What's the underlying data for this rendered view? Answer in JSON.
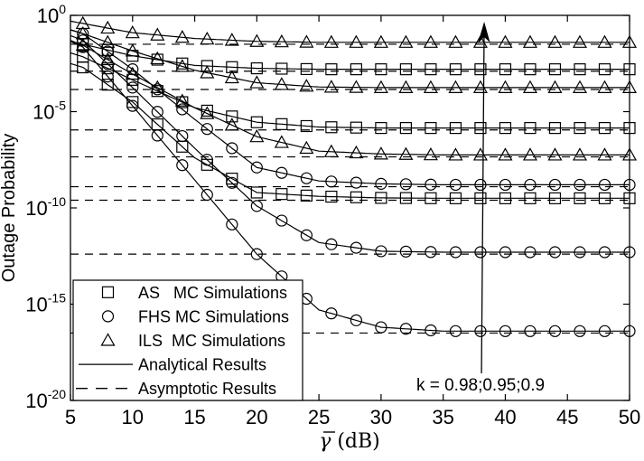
{
  "figure": {
    "background": "#ffffff",
    "ink_color": "#000000"
  },
  "chart_data": {
    "type": "line",
    "title": "",
    "xlabel_symbol": "γ",
    "xlabel_symbol_overline": true,
    "xlabel_unit": "(dB)",
    "ylabel": "Outage Probability",
    "xlim": [
      5,
      50
    ],
    "x_ticks": [
      5,
      10,
      15,
      20,
      25,
      30,
      35,
      40,
      45,
      50
    ],
    "y_axis_scale": "log10",
    "y_tick_base": "10",
    "y_tick_exponents": [
      "0",
      "-5",
      "-10",
      "-15",
      "-20"
    ],
    "ylim_exponents": [
      -20,
      0
    ],
    "grid": false,
    "marker_x_start_db": 6,
    "marker_x_step_db": 2,
    "control_x_db": [
      5,
      6,
      10,
      15,
      20,
      25,
      30,
      35,
      40,
      45,
      50
    ],
    "series": [
      {
        "scheme": "ILS",
        "k": 0.9,
        "marker": "triangle",
        "line": "solid",
        "log10_outage": [
          -0.3,
          -0.42,
          -0.9,
          -1.2,
          -1.35,
          -1.4,
          -1.4,
          -1.4,
          -1.4,
          -1.4,
          -1.4
        ]
      },
      {
        "scheme": "AS",
        "k": 0.9,
        "marker": "square",
        "line": "solid",
        "log10_outage": [
          -1.35,
          -1.5,
          -2.1,
          -2.6,
          -2.75,
          -2.8,
          -2.8,
          -2.8,
          -2.8,
          -2.8,
          -2.8
        ]
      },
      {
        "scheme": "ILS",
        "k": 0.95,
        "marker": "triangle",
        "line": "solid",
        "log10_outage": [
          -0.75,
          -0.95,
          -1.85,
          -2.85,
          -3.5,
          -3.72,
          -3.75,
          -3.75,
          -3.75,
          -3.75,
          -3.75
        ]
      },
      {
        "scheme": "AS",
        "k": 0.95,
        "marker": "square",
        "line": "solid",
        "log10_outage": [
          -1.95,
          -2.15,
          -3.35,
          -4.8,
          -5.55,
          -5.8,
          -5.85,
          -5.85,
          -5.85,
          -5.85,
          -5.85
        ]
      },
      {
        "scheme": "ILS",
        "k": 0.98,
        "marker": "triangle",
        "line": "solid",
        "log10_outage": [
          -1.3,
          -1.55,
          -3.05,
          -4.8,
          -6.3,
          -7.05,
          -7.2,
          -7.25,
          -7.25,
          -7.25,
          -7.25
        ]
      },
      {
        "scheme": "FHS",
        "k": 0.9,
        "marker": "circle",
        "line": "solid",
        "log10_outage": [
          -0.75,
          -0.95,
          -2.8,
          -5.4,
          -7.9,
          -8.6,
          -8.75,
          -8.8,
          -8.8,
          -8.8,
          -8.8
        ]
      },
      {
        "scheme": "AS",
        "k": 0.98,
        "marker": "square",
        "line": "solid",
        "log10_outage": [
          -2.5,
          -2.7,
          -4.5,
          -7.4,
          -9.2,
          -9.4,
          -9.48,
          -9.5,
          -9.5,
          -9.5,
          -9.5
        ]
      },
      {
        "scheme": "FHS",
        "k": 0.95,
        "marker": "circle",
        "line": "solid",
        "log10_outage": [
          -1.05,
          -1.3,
          -3.75,
          -6.9,
          -9.9,
          -11.8,
          -12.25,
          -12.3,
          -12.3,
          -12.3,
          -12.3
        ]
      },
      {
        "scheme": "FHS",
        "k": 0.98,
        "marker": "circle",
        "line": "solid",
        "log10_outage": [
          -1.35,
          -1.65,
          -4.7,
          -8.55,
          -12.4,
          -15.3,
          -16.2,
          -16.4,
          -16.4,
          -16.4,
          -16.4
        ]
      }
    ],
    "asymptotes_log10": [
      -1.5,
      -2.9,
      -3.85,
      -5.95,
      -7.35,
      -8.9,
      -9.6,
      -12.4,
      -16.5
    ],
    "legend": {
      "position": "bottom-left",
      "items": [
        {
          "symbol": "square",
          "label": "AS   MC Simulations"
        },
        {
          "symbol": "circle",
          "label": "FHS MC Simulations"
        },
        {
          "symbol": "triangle",
          "label": "ILS  MC Simulations"
        },
        {
          "symbol": "line-solid",
          "label": "Analytical Results"
        },
        {
          "symbol": "line-dashed",
          "label": "Asymptotic Results"
        }
      ]
    },
    "annotation": {
      "text": "k = 0.98;0.95;0.9",
      "arrow_x_db": 38.3,
      "arrow_direction": "up"
    }
  }
}
